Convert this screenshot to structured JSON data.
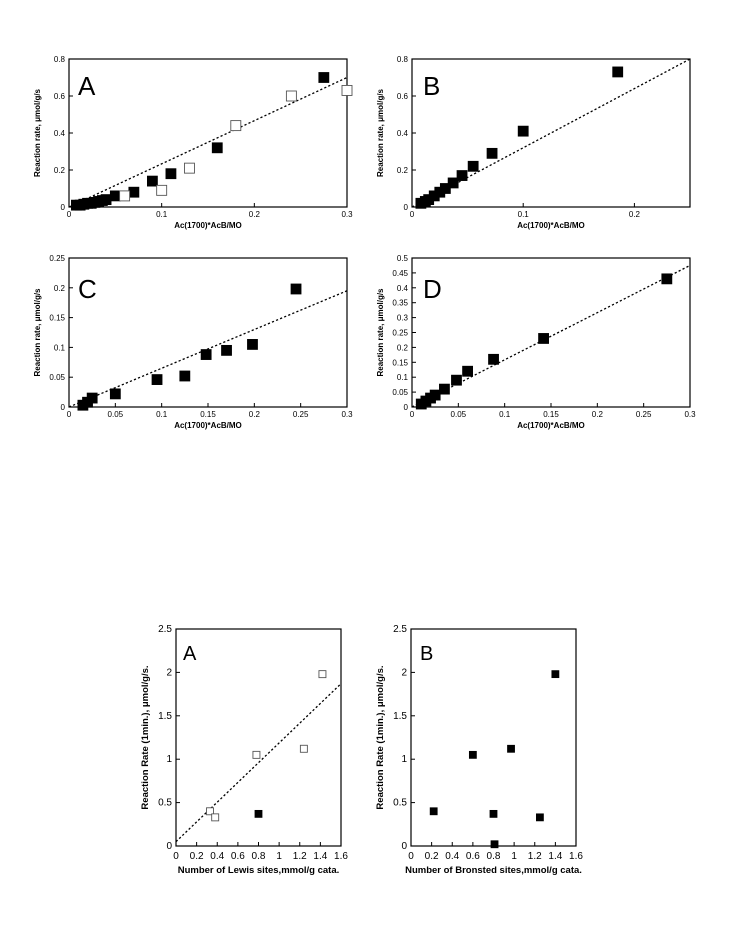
{
  "chart_data": [
    {
      "type": "scatter",
      "panel_label": "A",
      "xlabel": "Ac(1700)*AcB/MO",
      "ylabel": "Reaction rate, μmol/g/s",
      "xlim": [
        0,
        0.3
      ],
      "ylim": [
        0,
        0.8
      ],
      "xticks": [
        "0",
        "0.1",
        "0.2",
        "0.3"
      ],
      "yticks": [
        "0",
        "0.2",
        "0.4",
        "0.6",
        "0.8"
      ],
      "series": [
        {
          "marker": "filled-square",
          "x": [
            0.008,
            0.012,
            0.016,
            0.02,
            0.024,
            0.028,
            0.032,
            0.036,
            0.04,
            0.05,
            0.07,
            0.09,
            0.11,
            0.16,
            0.275
          ],
          "y": [
            0.01,
            0.01,
            0.015,
            0.02,
            0.02,
            0.025,
            0.03,
            0.035,
            0.04,
            0.06,
            0.08,
            0.14,
            0.18,
            0.32,
            0.7
          ]
        },
        {
          "marker": "open-square",
          "x": [
            0.06,
            0.1,
            0.13,
            0.18,
            0.24,
            0.3
          ],
          "y": [
            0.06,
            0.09,
            0.21,
            0.44,
            0.6,
            0.63
          ]
        }
      ],
      "trend": {
        "x": [
          0,
          0.3
        ],
        "y": [
          0,
          0.7
        ]
      }
    },
    {
      "type": "scatter",
      "panel_label": "B",
      "xlabel": "Ac(1700)*AcB/MO",
      "ylabel": "Reaction rate, μmol/g/s",
      "xlim": [
        0,
        0.25
      ],
      "ylim": [
        0,
        0.8
      ],
      "xticks": [
        "0",
        "0.1",
        "0.2"
      ],
      "yticks": [
        "0",
        "0.2",
        "0.4",
        "0.6",
        "0.8"
      ],
      "series": [
        {
          "marker": "filled-square",
          "x": [
            0.008,
            0.012,
            0.015,
            0.02,
            0.025,
            0.03,
            0.037,
            0.045,
            0.055,
            0.072,
            0.1,
            0.185
          ],
          "y": [
            0.02,
            0.03,
            0.04,
            0.06,
            0.08,
            0.1,
            0.13,
            0.17,
            0.22,
            0.29,
            0.41,
            0.73
          ]
        }
      ],
      "trend": {
        "x": [
          0,
          0.25
        ],
        "y": [
          0,
          0.8
        ]
      }
    },
    {
      "type": "scatter",
      "panel_label": "C",
      "xlabel": "Ac(1700)*AcB/MO",
      "ylabel": "Reaction rate, μmol/g/s",
      "xlim": [
        0,
        0.3
      ],
      "ylim": [
        0,
        0.25
      ],
      "xticks": [
        "0",
        "0.05",
        "0.1",
        "0.15",
        "0.2",
        "0.25",
        "0.3"
      ],
      "yticks": [
        "0",
        "0.05",
        "0.1",
        "0.15",
        "0.2",
        "0.25"
      ],
      "series": [
        {
          "marker": "filled-square",
          "x": [
            0.015,
            0.02,
            0.025,
            0.05,
            0.095,
            0.125,
            0.148,
            0.17,
            0.198,
            0.245
          ],
          "y": [
            0.003,
            0.008,
            0.015,
            0.022,
            0.046,
            0.052,
            0.088,
            0.095,
            0.105,
            0.198
          ]
        }
      ],
      "trend": {
        "x": [
          0,
          0.3
        ],
        "y": [
          0,
          0.195
        ]
      }
    },
    {
      "type": "scatter",
      "panel_label": "D",
      "xlabel": "Ac(1700)*AcB/MO",
      "ylabel": "Reaction rate, μmol/g/s",
      "xlim": [
        0,
        0.3
      ],
      "ylim": [
        0,
        0.5
      ],
      "xticks": [
        "0",
        "0.05",
        "0.1",
        "0.15",
        "0.2",
        "0.25",
        "0.3"
      ],
      "yticks": [
        "0",
        "0.05",
        "0.1",
        "0.15",
        "0.2",
        "0.25",
        "0.3",
        "0.35",
        "0.4",
        "0.45",
        "0.5"
      ],
      "series": [
        {
          "marker": "filled-square",
          "x": [
            0.01,
            0.015,
            0.02,
            0.025,
            0.035,
            0.048,
            0.06,
            0.088,
            0.142,
            0.275
          ],
          "y": [
            0.01,
            0.02,
            0.03,
            0.04,
            0.06,
            0.09,
            0.12,
            0.16,
            0.23,
            0.43
          ]
        }
      ],
      "trend": {
        "x": [
          0,
          0.3
        ],
        "y": [
          0,
          0.475
        ]
      }
    },
    {
      "type": "scatter",
      "panel_label": "A",
      "xlabel": "Number of Lewis sites,mmol/g cata.",
      "ylabel": "Reaction Rate (1min.), μmol/g/s.",
      "xlim": [
        0,
        1.6
      ],
      "ylim": [
        0,
        2.5
      ],
      "xticks": [
        "0",
        "0.2",
        "0.4",
        "0.6",
        "0.8",
        "1",
        "1.2",
        "1.4",
        "1.6"
      ],
      "yticks": [
        "0",
        "0.5",
        "1",
        "1.5",
        "2",
        "2.5"
      ],
      "series": [
        {
          "marker": "open-square",
          "x": [
            0.33,
            0.38,
            0.78,
            1.24,
            1.42
          ],
          "y": [
            0.4,
            0.33,
            1.05,
            1.12,
            1.98
          ]
        },
        {
          "marker": "filled-square",
          "x": [
            0.8
          ],
          "y": [
            0.37
          ]
        }
      ],
      "trend": {
        "x": [
          0,
          1.6
        ],
        "y": [
          0.05,
          1.87
        ]
      }
    },
    {
      "type": "scatter",
      "panel_label": "B",
      "xlabel": "Number of Bronsted sites,mmol/g cata.",
      "ylabel": "Reaction Rate (1min.), μmol/g/s.",
      "xlim": [
        0,
        1.6
      ],
      "ylim": [
        0,
        2.5
      ],
      "xticks": [
        "0",
        "0.2",
        "0.4",
        "0.6",
        "0.8",
        "1",
        "1.2",
        "1.4",
        "1.6"
      ],
      "yticks": [
        "0",
        "0.5",
        "1",
        "1.5",
        "2",
        "2.5"
      ],
      "series": [
        {
          "marker": "filled-square",
          "x": [
            0.22,
            0.6,
            0.8,
            0.81,
            0.97,
            1.25,
            1.4
          ],
          "y": [
            0.4,
            1.05,
            0.37,
            0.02,
            1.12,
            0.33,
            1.98
          ]
        }
      ]
    }
  ]
}
